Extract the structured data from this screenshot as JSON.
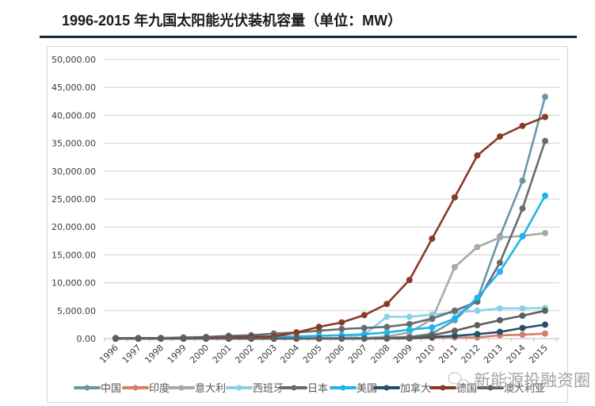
{
  "title": "1996-2015 年九国太阳能光伏装机容量（单位：MW）",
  "watermark": "新能源投融资圈",
  "chart_data": {
    "type": "line",
    "title": "1996-2015 年九国太阳能光伏装机容量（单位：MW）",
    "xlabel": "",
    "ylabel": "",
    "ylim": [
      0,
      50000
    ],
    "yticks": [
      "0.00",
      "5,000.00",
      "10,000.00",
      "15,000.00",
      "20,000.00",
      "25,000.00",
      "30,000.00",
      "35,000.00",
      "40,000.00",
      "45,000.00",
      "50,000.00"
    ],
    "ytick_values": [
      0,
      5000,
      10000,
      15000,
      20000,
      25000,
      30000,
      35000,
      40000,
      45000,
      50000
    ],
    "grid": true,
    "legend_position": "bottom",
    "categories": [
      "1996",
      "1997",
      "1998",
      "1999",
      "2000",
      "2001",
      "2002",
      "2003",
      "2004",
      "2005",
      "2006",
      "2007",
      "2008",
      "2009",
      "2010",
      "2011",
      "2012",
      "2013",
      "2014",
      "2015"
    ],
    "series": [
      {
        "name": "中国",
        "color": "#6a97a8",
        "values": [
          100,
          100,
          100,
          100,
          100,
          100,
          100,
          100,
          100,
          100,
          100,
          100,
          150,
          300,
          900,
          3300,
          7000,
          18300,
          28300,
          43300
        ]
      },
      {
        "name": "印度",
        "color": "#d47f68",
        "values": [
          0,
          0,
          0,
          0,
          0,
          0,
          0,
          0,
          0,
          0,
          0,
          0,
          0,
          30,
          100,
          200,
          200,
          600,
          700,
          900
        ]
      },
      {
        "name": "意大利",
        "color": "#a9a9a9",
        "values": [
          20,
          20,
          20,
          20,
          20,
          20,
          20,
          30,
          40,
          50,
          60,
          100,
          400,
          1100,
          3500,
          12800,
          16400,
          18100,
          18400,
          18900
        ]
      },
      {
        "name": "西班牙",
        "color": "#8ecfe8",
        "values": [
          0,
          0,
          0,
          0,
          0,
          0,
          0,
          0,
          40,
          50,
          100,
          700,
          3900,
          3900,
          4300,
          4700,
          5000,
          5400,
          5400,
          5500
        ]
      },
      {
        "name": "日本",
        "color": "#666c70",
        "values": [
          100,
          100,
          100,
          200,
          300,
          500,
          600,
          900,
          1100,
          1400,
          1700,
          1900,
          2100,
          2600,
          3600,
          5000,
          6600,
          13600,
          23300,
          35400
        ]
      },
      {
        "name": "美国",
        "color": "#1fb4ec",
        "values": [
          80,
          90,
          100,
          100,
          100,
          100,
          200,
          300,
          400,
          500,
          600,
          800,
          1100,
          1600,
          2000,
          3600,
          7300,
          12000,
          18300,
          25600
        ]
      },
      {
        "name": "加拿大",
        "color": "#25506a",
        "values": [
          0,
          0,
          0,
          0,
          0,
          0,
          0,
          0,
          0,
          20,
          30,
          30,
          40,
          100,
          300,
          500,
          800,
          1200,
          1900,
          2500
        ]
      },
      {
        "name": "德国",
        "color": "#8a3a28",
        "values": [
          30,
          40,
          50,
          70,
          100,
          200,
          300,
          400,
          1100,
          2100,
          2900,
          4200,
          6200,
          10500,
          17900,
          25300,
          32800,
          36200,
          38100,
          39700
        ]
      },
      {
        "name": "澳大利亚",
        "color": "#5f5f5f",
        "values": [
          0,
          0,
          0,
          0,
          0,
          0,
          0,
          0,
          0,
          0,
          0,
          0,
          100,
          200,
          600,
          1400,
          2400,
          3300,
          4100,
          5000
        ]
      }
    ]
  }
}
